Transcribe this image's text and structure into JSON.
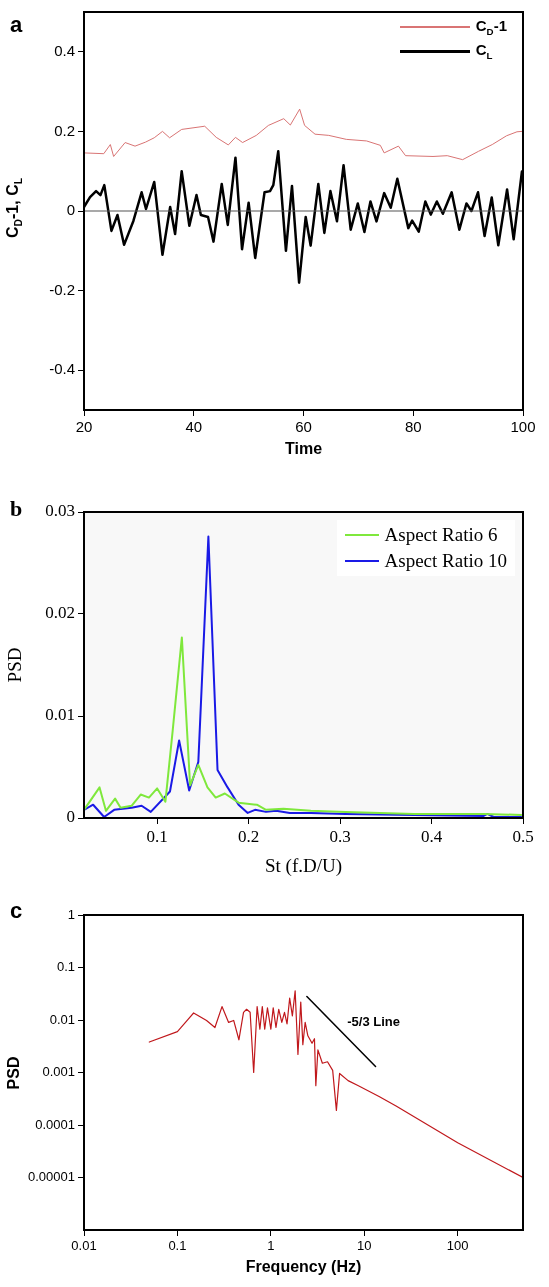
{
  "chart_data": [
    {
      "type": "line",
      "title": "a",
      "xlabel": "Time",
      "ylabel": "C$_{D}$-1, C$_{L}$",
      "xlim": [
        20,
        100
      ],
      "xticks": [
        20,
        40,
        60,
        80,
        100
      ],
      "ylim": [
        -0.5,
        0.5
      ],
      "yticks": [
        -0.4,
        -0.2,
        0,
        0.2,
        0.4
      ],
      "legend": "top right",
      "marker": "none",
      "ref_lines": [
        {
          "axis": "y",
          "value": 0,
          "color": "#555555"
        }
      ],
      "series": [
        {
          "name": "C$_{D}$-1",
          "color": "#d97474",
          "x": [
            20,
            23.6,
            24.8,
            25.4,
            27.5,
            29.3,
            31.2,
            32.8,
            34.3,
            35.6,
            37.8,
            42,
            44.1,
            46.3,
            47.6,
            48.9,
            51.4,
            53.6,
            56.4,
            57.6,
            59.3,
            60.2,
            62.1,
            64.6,
            67.8,
            71.5,
            74,
            74.7,
            77.3,
            78.6,
            83.6,
            86.2,
            89,
            91.9,
            94.4,
            97,
            98.9,
            99.8
          ],
          "values": [
            0.146,
            0.144,
            0.167,
            0.137,
            0.172,
            0.163,
            0.173,
            0.184,
            0.2,
            0.184,
            0.205,
            0.213,
            0.185,
            0.166,
            0.185,
            0.172,
            0.19,
            0.215,
            0.232,
            0.216,
            0.256,
            0.215,
            0.193,
            0.19,
            0.18,
            0.176,
            0.165,
            0.146,
            0.163,
            0.139,
            0.137,
            0.139,
            0.129,
            0.15,
            0.167,
            0.189,
            0.199,
            0.2
          ]
        },
        {
          "name": "C$_{L}$",
          "color": "#000000",
          "x": [
            20,
            21.1,
            22.2,
            23,
            23.7,
            25,
            26.1,
            27.3,
            29,
            30.5,
            31.3,
            32.8,
            34.3,
            35.7,
            36.6,
            37.8,
            39.2,
            40.5,
            41.3,
            42.6,
            43.6,
            45.1,
            46.2,
            47.6,
            48.8,
            50,
            51.2,
            52.9,
            53.9,
            54.5,
            55.4,
            56.8,
            57.9,
            59.2,
            60.4,
            61.3,
            62.7,
            63.8,
            64.9,
            66.1,
            67.3,
            68.6,
            69.9,
            71.1,
            72.2,
            73.3,
            74.7,
            75.9,
            77.1,
            79.1,
            79.8,
            81,
            82.2,
            83.2,
            84.3,
            85.4,
            87,
            88.4,
            89.7,
            90.6,
            91.8,
            93,
            94.3,
            95.5,
            97.1,
            98.3,
            99.8
          ],
          "values": [
            0.01,
            0.035,
            0.05,
            0.04,
            0.065,
            -0.05,
            -0.01,
            -0.085,
            -0.025,
            0.047,
            0.005,
            0.073,
            -0.11,
            0.01,
            -0.058,
            0.1,
            -0.037,
            0.04,
            -0.01,
            -0.015,
            -0.077,
            0.068,
            -0.035,
            0.134,
            -0.096,
            0.021,
            -0.118,
            0.047,
            0.05,
            0.065,
            0.15,
            -0.1,
            0.063,
            -0.18,
            -0.015,
            -0.087,
            0.068,
            -0.055,
            0.05,
            -0.026,
            0.115,
            -0.047,
            0.019,
            -0.053,
            0.024,
            -0.026,
            0.045,
            0.008,
            0.081,
            -0.043,
            -0.024,
            -0.052,
            0.024,
            -0.009,
            0.024,
            -0.007,
            0.047,
            -0.047,
            0.019,
            0,
            0.047,
            -0.063,
            0.034,
            -0.086,
            0.054,
            -0.071,
            0.099
          ]
        }
      ]
    },
    {
      "type": "line",
      "title": "b",
      "xlabel": "St (f.D/U)",
      "ylabel": "PSD",
      "xlim": [
        0.02,
        0.5
      ],
      "xticks": [
        0.1,
        0.2,
        0.3,
        0.4,
        0.5
      ],
      "ylim": [
        0,
        0.03
      ],
      "yticks": [
        0,
        0.01,
        0.02,
        0.03
      ],
      "legend": "top right",
      "marker": "none",
      "series": [
        {
          "name": "Aspect Ratio 6",
          "color": "#7fe83c",
          "x": [
            0.02,
            0.037,
            0.044,
            0.054,
            0.06,
            0.072,
            0.082,
            0.091,
            0.1,
            0.109,
            0.117,
            0.127,
            0.136,
            0.145,
            0.155,
            0.164,
            0.174,
            0.189,
            0.209,
            0.219,
            0.238,
            0.268,
            0.306,
            0.381,
            0.457,
            0.498
          ],
          "values": [
            0.0008,
            0.003,
            0.0007,
            0.0019,
            0.001,
            0.0012,
            0.0023,
            0.002,
            0.0029,
            0.0016,
            0.0086,
            0.0177,
            0.0032,
            0.0052,
            0.003,
            0.002,
            0.0024,
            0.0015,
            0.0013,
            0.0008,
            0.0009,
            0.0007,
            0.0006,
            0.0004,
            0.0004,
            0.0003
          ]
        },
        {
          "name": "Aspect Ratio 10",
          "color": "#1a1ae6",
          "x": [
            0.02,
            0.03,
            0.042,
            0.053,
            0.072,
            0.083,
            0.093,
            0.114,
            0.124,
            0.135,
            0.145,
            0.156,
            0.166,
            0.177,
            0.189,
            0.199,
            0.207,
            0.219,
            0.23,
            0.245,
            0.268,
            0.306,
            0.381,
            0.457,
            0.461,
            0.468,
            0.498
          ],
          "values": [
            0.0008,
            0.0013,
            0.0001,
            0.0008,
            0.001,
            0.0012,
            0.0006,
            0.0026,
            0.0076,
            0.0027,
            0.0055,
            0.0276,
            0.0047,
            0.003,
            0.0013,
            0.0005,
            0.0008,
            0.0006,
            0.0007,
            0.0005,
            0.0005,
            0.0004,
            0.0003,
            0.0002,
            0.0004,
            0.0001,
            0.0001
          ]
        }
      ]
    },
    {
      "type": "line",
      "title": "c",
      "xlabel": "Frequency (Hz)",
      "ylabel": "PSD",
      "log": "xy",
      "xlim": [
        0.01,
        500
      ],
      "xticks": [
        0.01,
        0.1,
        1,
        10,
        100
      ],
      "ylim": [
        1e-06,
        1
      ],
      "yticks": [
        {
          "value": 1e-05,
          "label": "0.00001"
        },
        0.0001,
        0.001,
        0.01,
        0.1,
        1
      ],
      "marker": "none",
      "series": [
        {
          "color": "#c0181c",
          "x": [
            0.05,
            0.1,
            0.149,
            0.205,
            0.252,
            0.3,
            0.353,
            0.4,
            0.455,
            0.51,
            0.55,
            0.6,
            0.655,
            0.713,
            0.763,
            0.81,
            0.86,
            0.92,
            1,
            1.06,
            1.135,
            1.215,
            1.31,
            1.4,
            1.49,
            1.59,
            1.7,
            1.82,
            1.95,
            2.09,
            2.2,
            2.33,
            2.49,
            2.76,
            2.93,
            3.03,
            3.19,
            3.56,
            4.04,
            4.59,
            5.03,
            5.44,
            6.71,
            8.65,
            14.4,
            21.9,
            100,
            500
          ],
          "values": [
            0.0038,
            0.006,
            0.0136,
            0.0098,
            0.0072,
            0.018,
            0.009,
            0.0098,
            0.0042,
            0.014,
            0.016,
            0.014,
            0.001,
            0.018,
            0.0067,
            0.018,
            0.0067,
            0.017,
            0.0067,
            0.017,
            0.0072,
            0.016,
            0.009,
            0.014,
            0.0084,
            0.026,
            0.012,
            0.036,
            0.0022,
            0.022,
            0.0034,
            0.009,
            0.005,
            0.0036,
            0.0044,
            0.00056,
            0.0027,
            0.0015,
            0.0016,
            0.0011,
            0.00019,
            0.00096,
            0.0007,
            0.00056,
            0.00035,
            0.00023,
            4.6e-05,
            1e-05
          ]
        },
        {
          "name": "-5/3 Line",
          "color": "#000000",
          "x": [
            2.43,
            13.2
          ],
          "values": [
            0.028,
            0.0013
          ]
        }
      ]
    }
  ]
}
